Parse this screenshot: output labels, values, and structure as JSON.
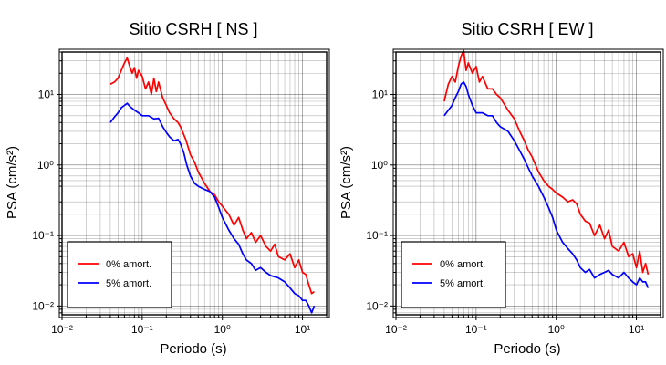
{
  "chart_data": [
    {
      "type": "line",
      "title": "Sitio CSRH [ NS ]",
      "xlabel": "Periodo (s)",
      "ylabel": "PSA (cm/s²)",
      "x_scale": "log",
      "y_scale": "log",
      "xlim": [
        0.01,
        20
      ],
      "ylim": [
        0.0075,
        40
      ],
      "xtick_labels": [
        "10⁻²",
        "10⁻¹",
        "10⁰",
        "10¹"
      ],
      "ytick_labels": [
        "10⁻²",
        "10⁻¹",
        "10⁰",
        "10¹"
      ],
      "grid": true,
      "legend_position": "bottom-left",
      "series": [
        {
          "name": "0% amort.",
          "color": "#ff0000",
          "points": [
            [
              0.04,
              14
            ],
            [
              0.045,
              15
            ],
            [
              0.05,
              17
            ],
            [
              0.055,
              22
            ],
            [
              0.06,
              28
            ],
            [
              0.065,
              33
            ],
            [
              0.07,
              25
            ],
            [
              0.075,
              20
            ],
            [
              0.08,
              24
            ],
            [
              0.085,
              17
            ],
            [
              0.09,
              22
            ],
            [
              0.1,
              18
            ],
            [
              0.11,
              12
            ],
            [
              0.12,
              15
            ],
            [
              0.13,
              10
            ],
            [
              0.14,
              17
            ],
            [
              0.15,
              11
            ],
            [
              0.16,
              15
            ],
            [
              0.18,
              9
            ],
            [
              0.2,
              7
            ],
            [
              0.22,
              5.5
            ],
            [
              0.25,
              4.5
            ],
            [
              0.28,
              4
            ],
            [
              0.3,
              3.5
            ],
            [
              0.35,
              2.3
            ],
            [
              0.4,
              1.4
            ],
            [
              0.45,
              1.1
            ],
            [
              0.5,
              0.8
            ],
            [
              0.6,
              0.55
            ],
            [
              0.7,
              0.42
            ],
            [
              0.8,
              0.38
            ],
            [
              0.9,
              0.3
            ],
            [
              1.0,
              0.26
            ],
            [
              1.2,
              0.2
            ],
            [
              1.4,
              0.14
            ],
            [
              1.6,
              0.18
            ],
            [
              1.8,
              0.12
            ],
            [
              2.0,
              0.09
            ],
            [
              2.3,
              0.11
            ],
            [
              2.6,
              0.08
            ],
            [
              3.0,
              0.1
            ],
            [
              3.5,
              0.07
            ],
            [
              4.0,
              0.06
            ],
            [
              4.5,
              0.075
            ],
            [
              5.0,
              0.05
            ],
            [
              6.0,
              0.045
            ],
            [
              7.0,
              0.055
            ],
            [
              8.0,
              0.035
            ],
            [
              9.0,
              0.045
            ],
            [
              10.0,
              0.03
            ],
            [
              11.0,
              0.028
            ],
            [
              12.0,
              0.02
            ],
            [
              13.0,
              0.015
            ],
            [
              14.0,
              0.016
            ]
          ]
        },
        {
          "name": "5% amort.",
          "color": "#0000ff",
          "points": [
            [
              0.04,
              4
            ],
            [
              0.045,
              4.8
            ],
            [
              0.05,
              5.5
            ],
            [
              0.055,
              6.5
            ],
            [
              0.06,
              7
            ],
            [
              0.065,
              7.5
            ],
            [
              0.07,
              6.8
            ],
            [
              0.08,
              6
            ],
            [
              0.09,
              5.5
            ],
            [
              0.1,
              5
            ],
            [
              0.12,
              5
            ],
            [
              0.14,
              4.5
            ],
            [
              0.16,
              4.6
            ],
            [
              0.18,
              3.5
            ],
            [
              0.2,
              2.9
            ],
            [
              0.22,
              2.5
            ],
            [
              0.25,
              2.2
            ],
            [
              0.28,
              2.3
            ],
            [
              0.3,
              2.0
            ],
            [
              0.33,
              1.5
            ],
            [
              0.36,
              1.0
            ],
            [
              0.4,
              0.7
            ],
            [
              0.45,
              0.55
            ],
            [
              0.5,
              0.5
            ],
            [
              0.6,
              0.45
            ],
            [
              0.7,
              0.42
            ],
            [
              0.8,
              0.35
            ],
            [
              0.9,
              0.25
            ],
            [
              1.0,
              0.18
            ],
            [
              1.2,
              0.12
            ],
            [
              1.4,
              0.09
            ],
            [
              1.6,
              0.075
            ],
            [
              1.8,
              0.055
            ],
            [
              2.0,
              0.045
            ],
            [
              2.3,
              0.04
            ],
            [
              2.6,
              0.032
            ],
            [
              3.0,
              0.035
            ],
            [
              3.5,
              0.03
            ],
            [
              4.0,
              0.027
            ],
            [
              5.0,
              0.025
            ],
            [
              6.0,
              0.022
            ],
            [
              7.0,
              0.018
            ],
            [
              8.0,
              0.015
            ],
            [
              9.0,
              0.014
            ],
            [
              10.0,
              0.012
            ],
            [
              11.0,
              0.012
            ],
            [
              12.0,
              0.01
            ],
            [
              13.0,
              0.008
            ],
            [
              14.0,
              0.01
            ]
          ]
        }
      ]
    },
    {
      "type": "line",
      "title": "Sitio CSRH [ EW ]",
      "xlabel": "Periodo (s)",
      "ylabel": "PSA (cm/s²)",
      "x_scale": "log",
      "y_scale": "log",
      "xlim": [
        0.01,
        20
      ],
      "ylim": [
        0.0075,
        40
      ],
      "xtick_labels": [
        "10⁻²",
        "10⁻¹",
        "10⁰",
        "10¹"
      ],
      "ytick_labels": [
        "10⁻²",
        "10⁻¹",
        "10⁰",
        "10¹"
      ],
      "grid": true,
      "legend_position": "bottom-left",
      "series": [
        {
          "name": "0% amort.",
          "color": "#ff0000",
          "points": [
            [
              0.04,
              8
            ],
            [
              0.045,
              14
            ],
            [
              0.05,
              18
            ],
            [
              0.055,
              15
            ],
            [
              0.06,
              25
            ],
            [
              0.065,
              35
            ],
            [
              0.07,
              42
            ],
            [
              0.075,
              22
            ],
            [
              0.08,
              28
            ],
            [
              0.09,
              20
            ],
            [
              0.1,
              25
            ],
            [
              0.11,
              15
            ],
            [
              0.12,
              18
            ],
            [
              0.14,
              12
            ],
            [
              0.16,
              12
            ],
            [
              0.18,
              10
            ],
            [
              0.2,
              9
            ],
            [
              0.25,
              6
            ],
            [
              0.3,
              4.5
            ],
            [
              0.35,
              3
            ],
            [
              0.4,
              2.2
            ],
            [
              0.45,
              1.6
            ],
            [
              0.5,
              1.3
            ],
            [
              0.6,
              0.8
            ],
            [
              0.7,
              0.6
            ],
            [
              0.8,
              0.5
            ],
            [
              0.9,
              0.45
            ],
            [
              1.0,
              0.4
            ],
            [
              1.2,
              0.35
            ],
            [
              1.4,
              0.3
            ],
            [
              1.6,
              0.32
            ],
            [
              1.8,
              0.28
            ],
            [
              2.0,
              0.2
            ],
            [
              2.3,
              0.16
            ],
            [
              2.6,
              0.15
            ],
            [
              3.0,
              0.1
            ],
            [
              3.5,
              0.14
            ],
            [
              4.0,
              0.09
            ],
            [
              4.5,
              0.12
            ],
            [
              5.0,
              0.07
            ],
            [
              6.0,
              0.06
            ],
            [
              7.0,
              0.08
            ],
            [
              8.0,
              0.05
            ],
            [
              9.0,
              0.055
            ],
            [
              10.0,
              0.035
            ],
            [
              11.0,
              0.06
            ],
            [
              12.0,
              0.03
            ],
            [
              13.0,
              0.04
            ],
            [
              14.0,
              0.028
            ]
          ]
        },
        {
          "name": "5% amort.",
          "color": "#0000ff",
          "points": [
            [
              0.04,
              5
            ],
            [
              0.045,
              6
            ],
            [
              0.05,
              7
            ],
            [
              0.055,
              9
            ],
            [
              0.06,
              11
            ],
            [
              0.065,
              14
            ],
            [
              0.07,
              15
            ],
            [
              0.075,
              13
            ],
            [
              0.08,
              10
            ],
            [
              0.09,
              7
            ],
            [
              0.1,
              5.5
            ],
            [
              0.12,
              5.5
            ],
            [
              0.14,
              5
            ],
            [
              0.16,
              5
            ],
            [
              0.18,
              4
            ],
            [
              0.2,
              3.5
            ],
            [
              0.25,
              3
            ],
            [
              0.3,
              2.2
            ],
            [
              0.35,
              1.6
            ],
            [
              0.4,
              1.2
            ],
            [
              0.45,
              0.9
            ],
            [
              0.5,
              0.7
            ],
            [
              0.6,
              0.5
            ],
            [
              0.7,
              0.35
            ],
            [
              0.8,
              0.25
            ],
            [
              0.9,
              0.18
            ],
            [
              1.0,
              0.12
            ],
            [
              1.2,
              0.08
            ],
            [
              1.4,
              0.065
            ],
            [
              1.6,
              0.055
            ],
            [
              1.8,
              0.045
            ],
            [
              2.0,
              0.035
            ],
            [
              2.3,
              0.03
            ],
            [
              2.6,
              0.033
            ],
            [
              3.0,
              0.025
            ],
            [
              3.5,
              0.028
            ],
            [
              4.0,
              0.03
            ],
            [
              4.5,
              0.032
            ],
            [
              5.0,
              0.028
            ],
            [
              6.0,
              0.025
            ],
            [
              7.0,
              0.03
            ],
            [
              8.0,
              0.025
            ],
            [
              9.0,
              0.022
            ],
            [
              10.0,
              0.02
            ],
            [
              11.0,
              0.025
            ],
            [
              12.0,
              0.022
            ],
            [
              13.0,
              0.022
            ],
            [
              14.0,
              0.018
            ]
          ]
        }
      ]
    }
  ]
}
